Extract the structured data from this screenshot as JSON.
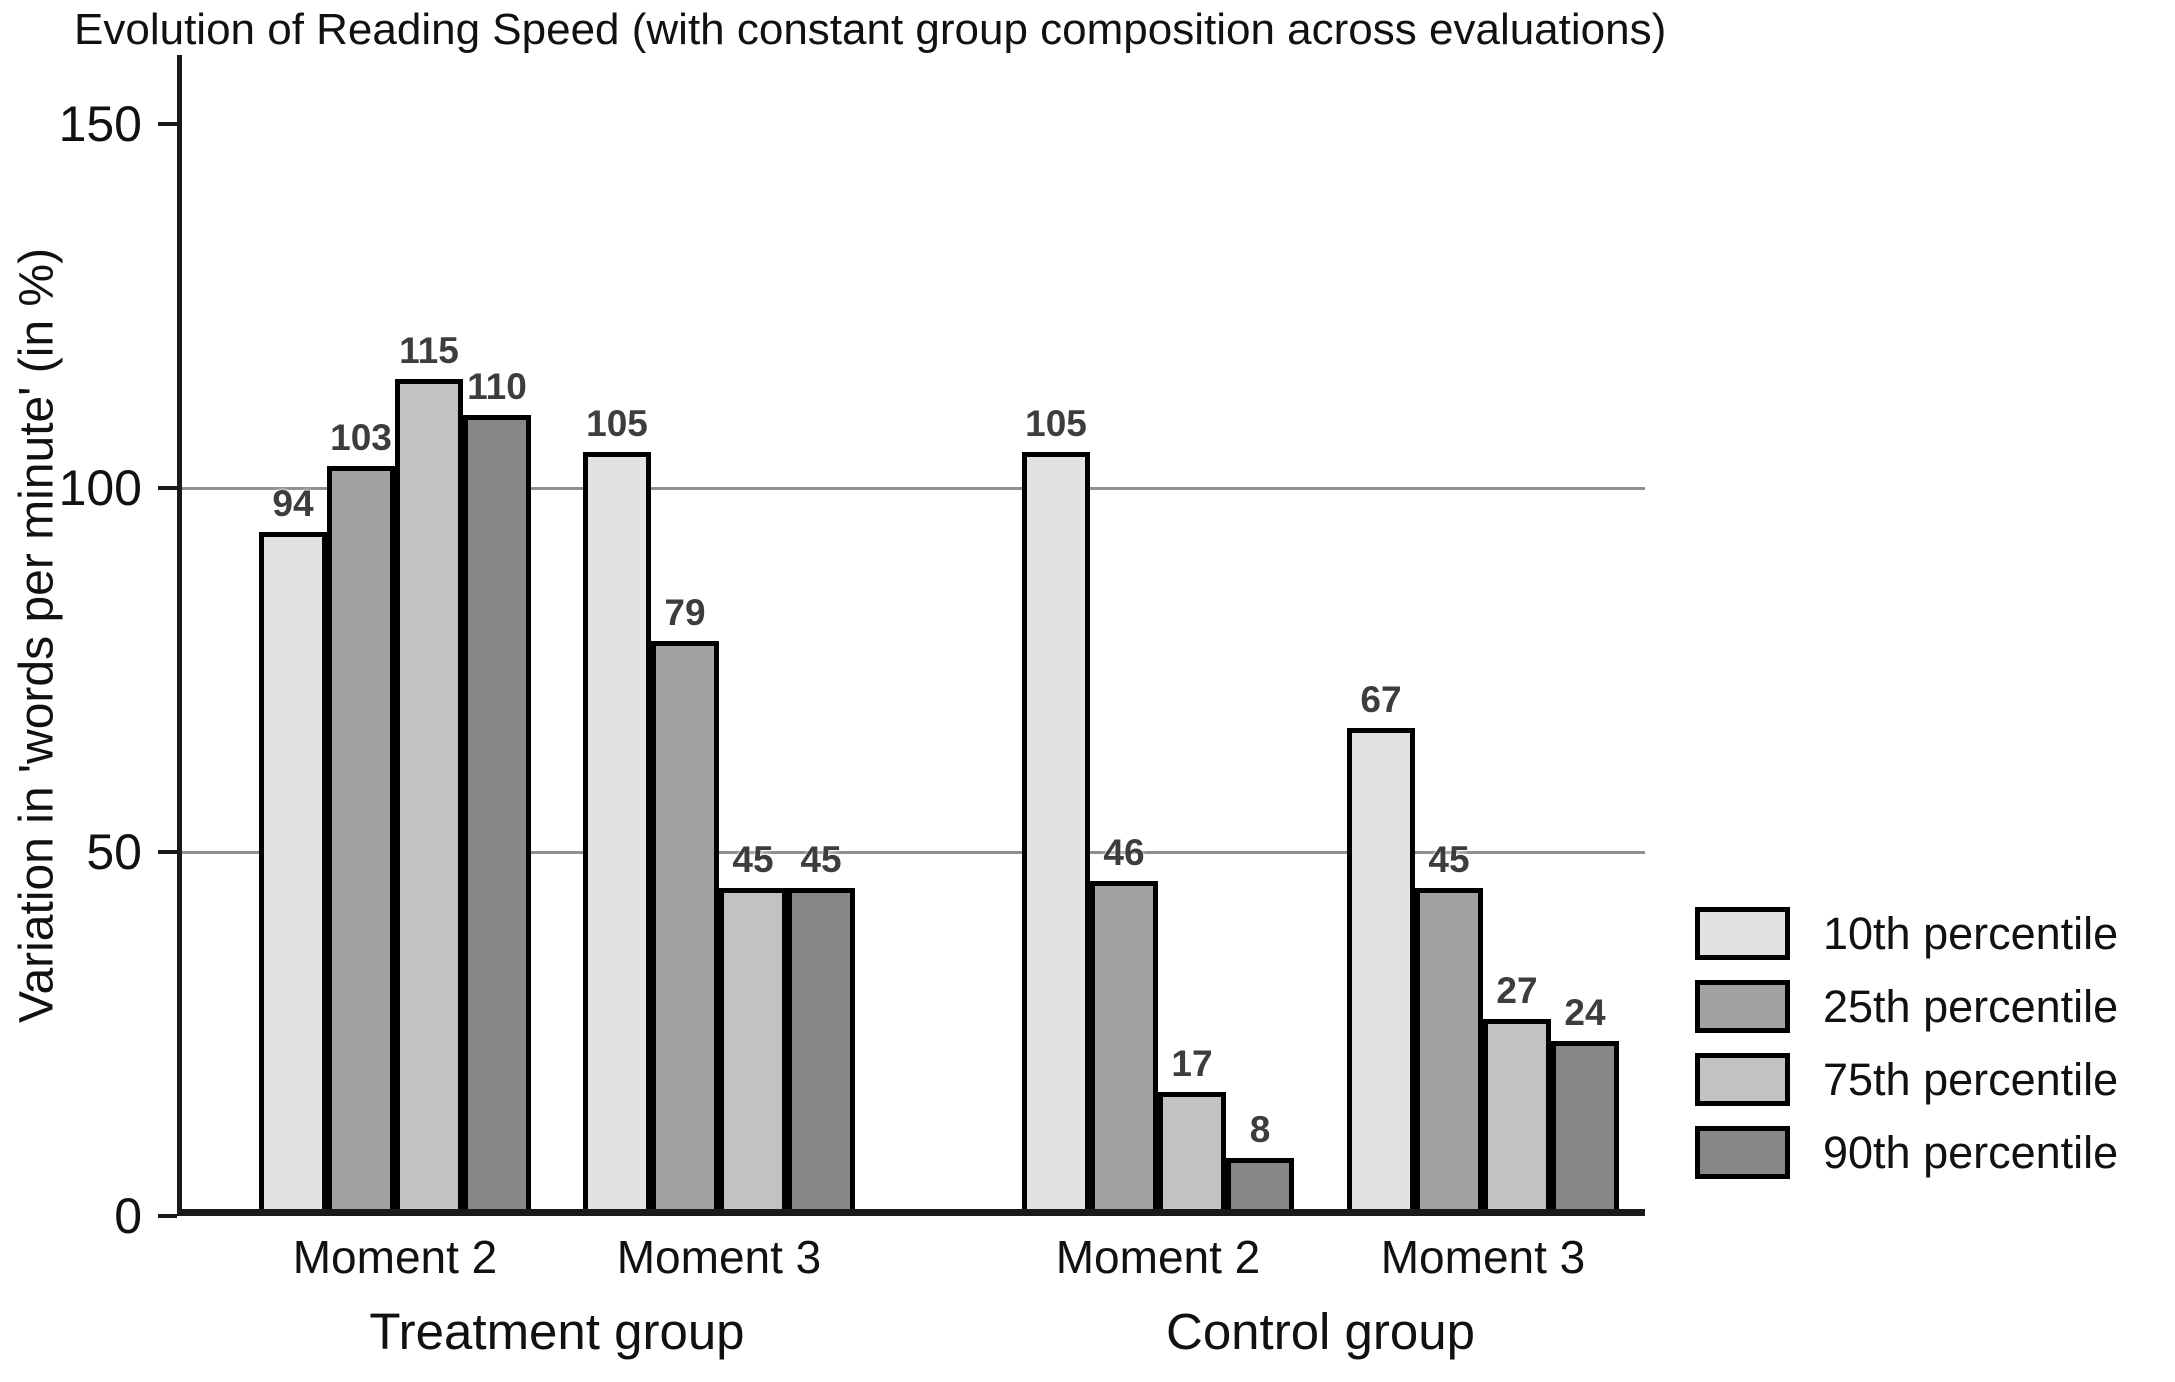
{
  "chart_data": {
    "type": "bar",
    "title": "Evolution of Reading Speed (with constant group composition across evaluations)",
    "ylabel": "Variation in 'words per minute' (in %)",
    "xlabel": "",
    "ylim": [
      0,
      159
    ],
    "yticks": [
      0,
      50,
      100,
      150
    ],
    "gridlines": [
      50,
      100
    ],
    "grid": "horizontal",
    "legend_position": "right",
    "background_color": "#ffffff",
    "axis_color": "#1a1a1a",
    "gridline_color": "#8f8f8f",
    "bar_border_color": "#000000",
    "data_label_color": "#3d3d3d",
    "categories": [
      "Moment 2",
      "Moment 3",
      "Moment 2",
      "Moment 3"
    ],
    "groups": [
      {
        "label": "Treatment group",
        "category_indexes": [
          0,
          1
        ]
      },
      {
        "label": "Control group",
        "category_indexes": [
          2,
          3
        ]
      }
    ],
    "series": [
      {
        "name": "10th percentile",
        "color": "#e2e2e2",
        "values": [
          94,
          105,
          105,
          67
        ]
      },
      {
        "name": "25th percentile",
        "color": "#a2a2a2",
        "values": [
          103,
          79,
          46,
          45
        ]
      },
      {
        "name": "75th percentile",
        "color": "#c2c2c2",
        "values": [
          115,
          45,
          17,
          27
        ]
      },
      {
        "name": "90th percentile",
        "color": "#878787",
        "values": [
          110,
          45,
          8,
          24
        ]
      }
    ]
  }
}
